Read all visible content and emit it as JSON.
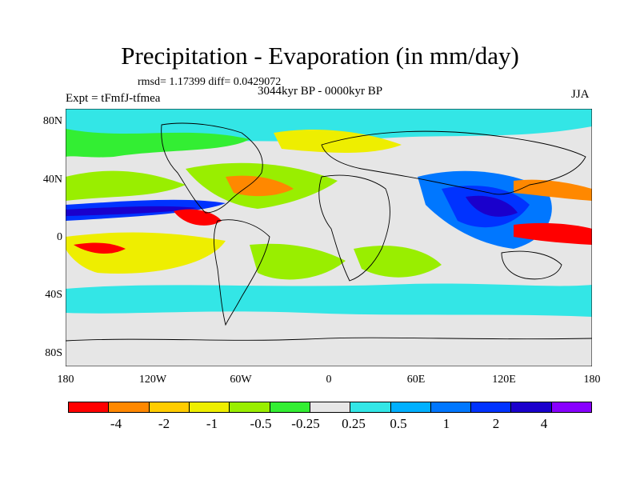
{
  "title": "Precipitation - Evaporation (in mm/day)",
  "stats": "rmsd= 1.17399 diff= 0.0429072",
  "period": "3044kyr BP - 0000kyr BP",
  "experiment": "Expt = tFmfJ-tfmea",
  "season": "JJA",
  "lat_labels": [
    "80N",
    "40N",
    "0",
    "40S",
    "80S"
  ],
  "lon_labels": [
    "180",
    "120W",
    "60W",
    "0",
    "60E",
    "120E",
    "180"
  ],
  "colorbar": {
    "labels": [
      "-4",
      "-2",
      "-1",
      "-0.5",
      "-0.25",
      "0.25",
      "0.5",
      "1",
      "2",
      "4"
    ],
    "colors": [
      "#ff0000",
      "#ff8800",
      "#ffcc00",
      "#eeee00",
      "#99ee00",
      "#33ee33",
      "#e6e6e6",
      "#33e6e6",
      "#00b0ff",
      "#0077ff",
      "#0033ff",
      "#1a00cc",
      "#8800ff"
    ]
  },
  "palette": {
    "neutral": "#e6e6e6",
    "dry_strong": "#ff0000",
    "dry": "#ff8800",
    "dry_mod": "#eeee00",
    "dry_weak": "#99ee00",
    "dry_light": "#33ee33",
    "wet_light": "#33e6e6",
    "wet_weak": "#00b0ff",
    "wet_mod": "#0077ff",
    "wet": "#0033ff",
    "wet_strong": "#1a00cc",
    "coast": "#000000"
  }
}
